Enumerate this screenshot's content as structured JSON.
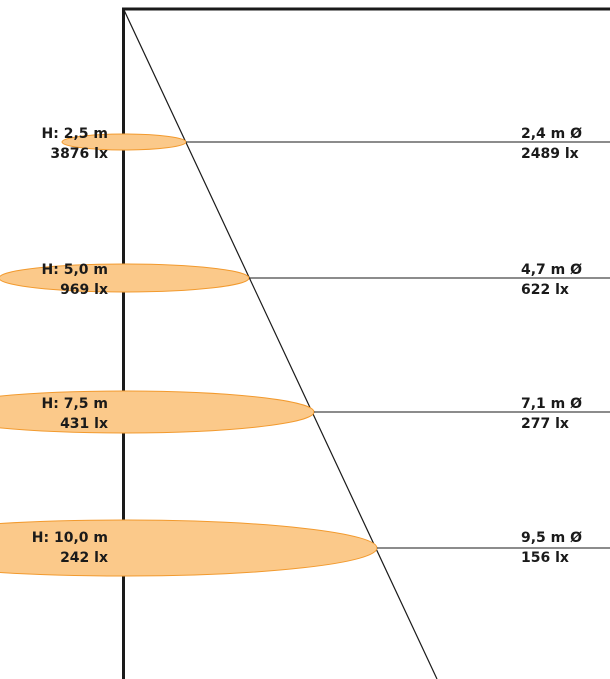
{
  "colors": {
    "ellipse_fill": "#fbc98a",
    "ellipse_stroke": "#f29a2e",
    "line": "#1a1a1a"
  },
  "levels": [
    {
      "height_label": "H: 2,5 m",
      "center_lux_label": "3876 lx",
      "diameter_label": "2,4 m Ø",
      "edge_lux_label": "2489 lx",
      "height_m": 2.5,
      "diameter_m": 2.4,
      "center_lux": 3876,
      "edge_lux": 2489
    },
    {
      "height_label": "H: 5,0 m",
      "center_lux_label": "969 lx",
      "diameter_label": "4,7 m Ø",
      "edge_lux_label": "622 lx",
      "height_m": 5.0,
      "diameter_m": 4.7,
      "center_lux": 969,
      "edge_lux": 622
    },
    {
      "height_label": "H: 7,5 m",
      "center_lux_label": "431 lx",
      "diameter_label": "7,1 m Ø",
      "edge_lux_label": "277 lx",
      "height_m": 7.5,
      "diameter_m": 7.1,
      "center_lux": 431,
      "edge_lux": 277
    },
    {
      "height_label": "H: 10,0 m",
      "center_lux_label": "242 lx",
      "diameter_label": "9,5 m Ø",
      "edge_lux_label": "156 lx",
      "height_m": 10.0,
      "diameter_m": 9.5,
      "center_lux": 242,
      "edge_lux": 156
    }
  ]
}
